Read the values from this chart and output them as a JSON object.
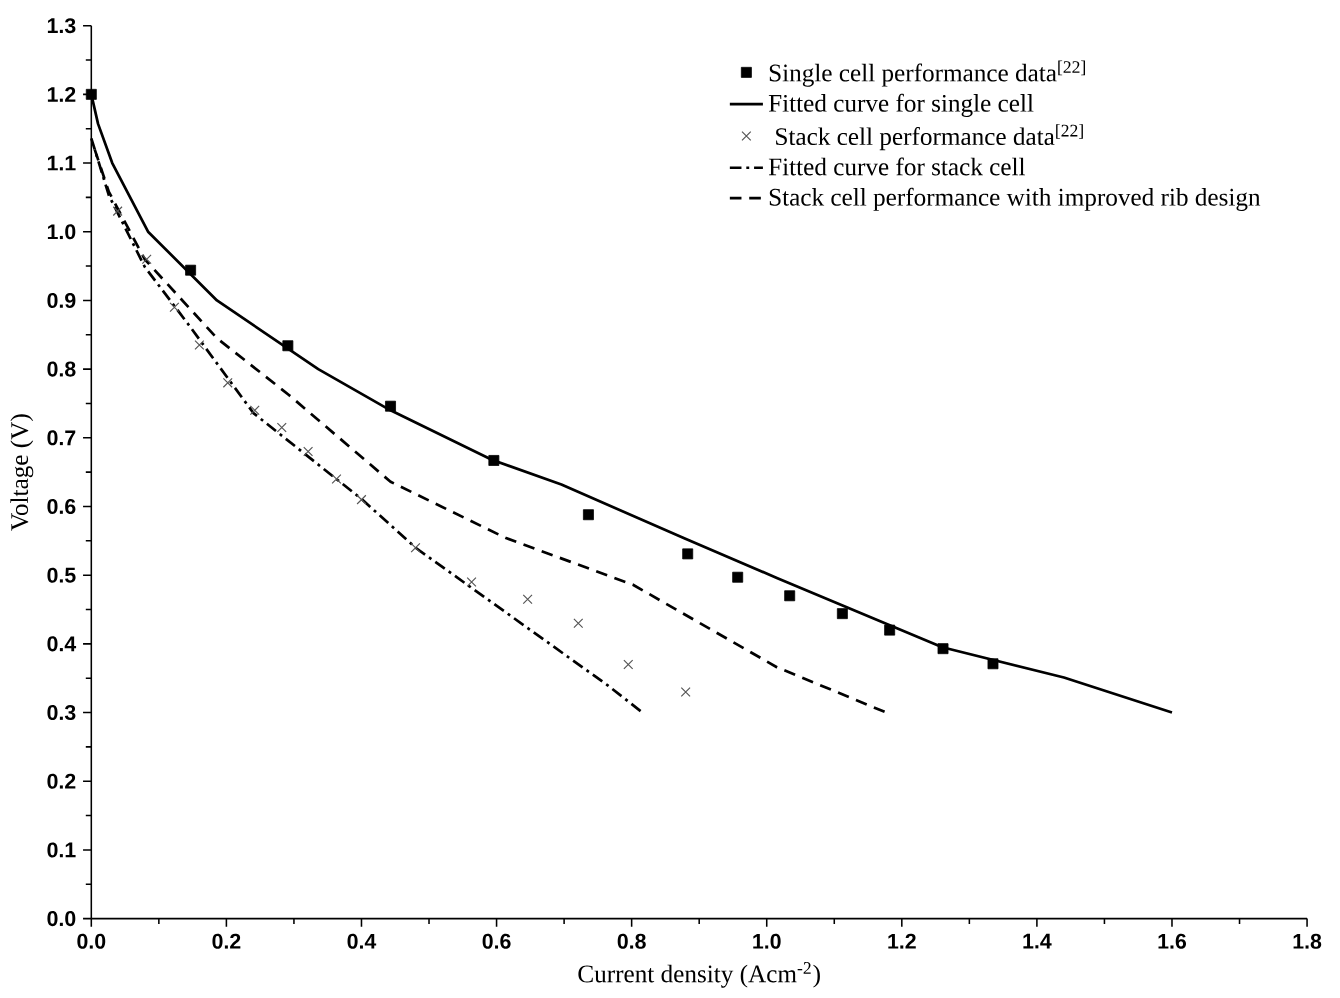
{
  "chart_data": {
    "type": "line",
    "xlabel": "Current density (Acm$^{-2}$)",
    "ylabel": "Voltage (V)",
    "xlim": [
      0,
      1.8
    ],
    "ylim": [
      0,
      1.3
    ],
    "xticks": [
      {
        "value": 0,
        "label": "0.0"
      },
      0.2,
      0.4,
      0.6,
      0.8,
      {
        "value": 1,
        "label": "1.0"
      },
      1.2,
      1.4,
      1.6,
      1.8
    ],
    "yticks": [
      {
        "value": 0,
        "label": "0.0"
      },
      0.1,
      0.2,
      0.3,
      0.4,
      0.5,
      0.6,
      0.7,
      0.8,
      0.9,
      {
        "value": 1,
        "label": "1.0"
      },
      1.1,
      1.2,
      1.3
    ],
    "grid": false,
    "legend": "top right",
    "series": [
      {
        "name": "Single cell performance data$^{[22]}$",
        "type": "scatter",
        "marker": "square",
        "color": "#000000",
        "x": [
          0,
          0.147,
          0.291,
          0.443,
          0.596,
          0.736,
          0.883,
          0.957,
          1.034,
          1.112,
          1.182,
          1.261,
          1.335
        ],
        "values": [
          1.2,
          0.944,
          0.834,
          0.746,
          0.667,
          0.588,
          0.531,
          0.497,
          0.47,
          0.444,
          0.42,
          0.393,
          0.371
        ]
      },
      {
        "name": "Fitted curve for single cell",
        "line_style": "solid",
        "color": "#000000",
        "x": [
          0,
          0.01,
          0.031,
          0.084,
          0.186,
          0.336,
          0.443,
          0.593,
          0.696,
          0.877,
          1.015,
          1.26,
          1.44,
          1.6
        ],
        "values": [
          1.2,
          1.157,
          1.1,
          1.0,
          0.9,
          0.8,
          0.74,
          0.668,
          0.632,
          0.554,
          0.496,
          0.395,
          0.351,
          0.3
        ]
      },
      {
        "name": " Stack cell performance data$^{[22]}$",
        "type": "scatter",
        "marker": "cross",
        "color": "#555555",
        "x": [
          0.039,
          0.082,
          0.123,
          0.16,
          0.202,
          0.242,
          0.282,
          0.321,
          0.363,
          0.4,
          0.48,
          0.563,
          0.646,
          0.721,
          0.795,
          0.88
        ],
        "values": [
          1.03,
          0.96,
          0.89,
          0.835,
          0.78,
          0.74,
          0.715,
          0.68,
          0.64,
          0.61,
          0.54,
          0.49,
          0.465,
          0.43,
          0.37,
          0.33
        ]
      },
      {
        "name": "Fitted curve for stack cell",
        "line_style": "dashdot",
        "color": "#000000",
        "x": [
          0,
          0.026,
          0.079,
          0.143,
          0.24,
          0.4,
          0.48,
          0.764,
          0.816
        ],
        "values": [
          1.136,
          1.053,
          0.949,
          0.866,
          0.736,
          0.611,
          0.54,
          0.34,
          0.3
        ]
      },
      {
        "name": "Stack cell performance with improved rib design",
        "line_style": "dashed",
        "color": "#000000",
        "x": [
          0.005,
          0.026,
          0.079,
          0.186,
          0.293,
          0.443,
          0.614,
          0.802,
          1.015,
          1.177
        ],
        "values": [
          1.12,
          1.058,
          0.96,
          0.845,
          0.762,
          0.636,
          0.554,
          0.486,
          0.366,
          0.3
        ]
      }
    ]
  }
}
